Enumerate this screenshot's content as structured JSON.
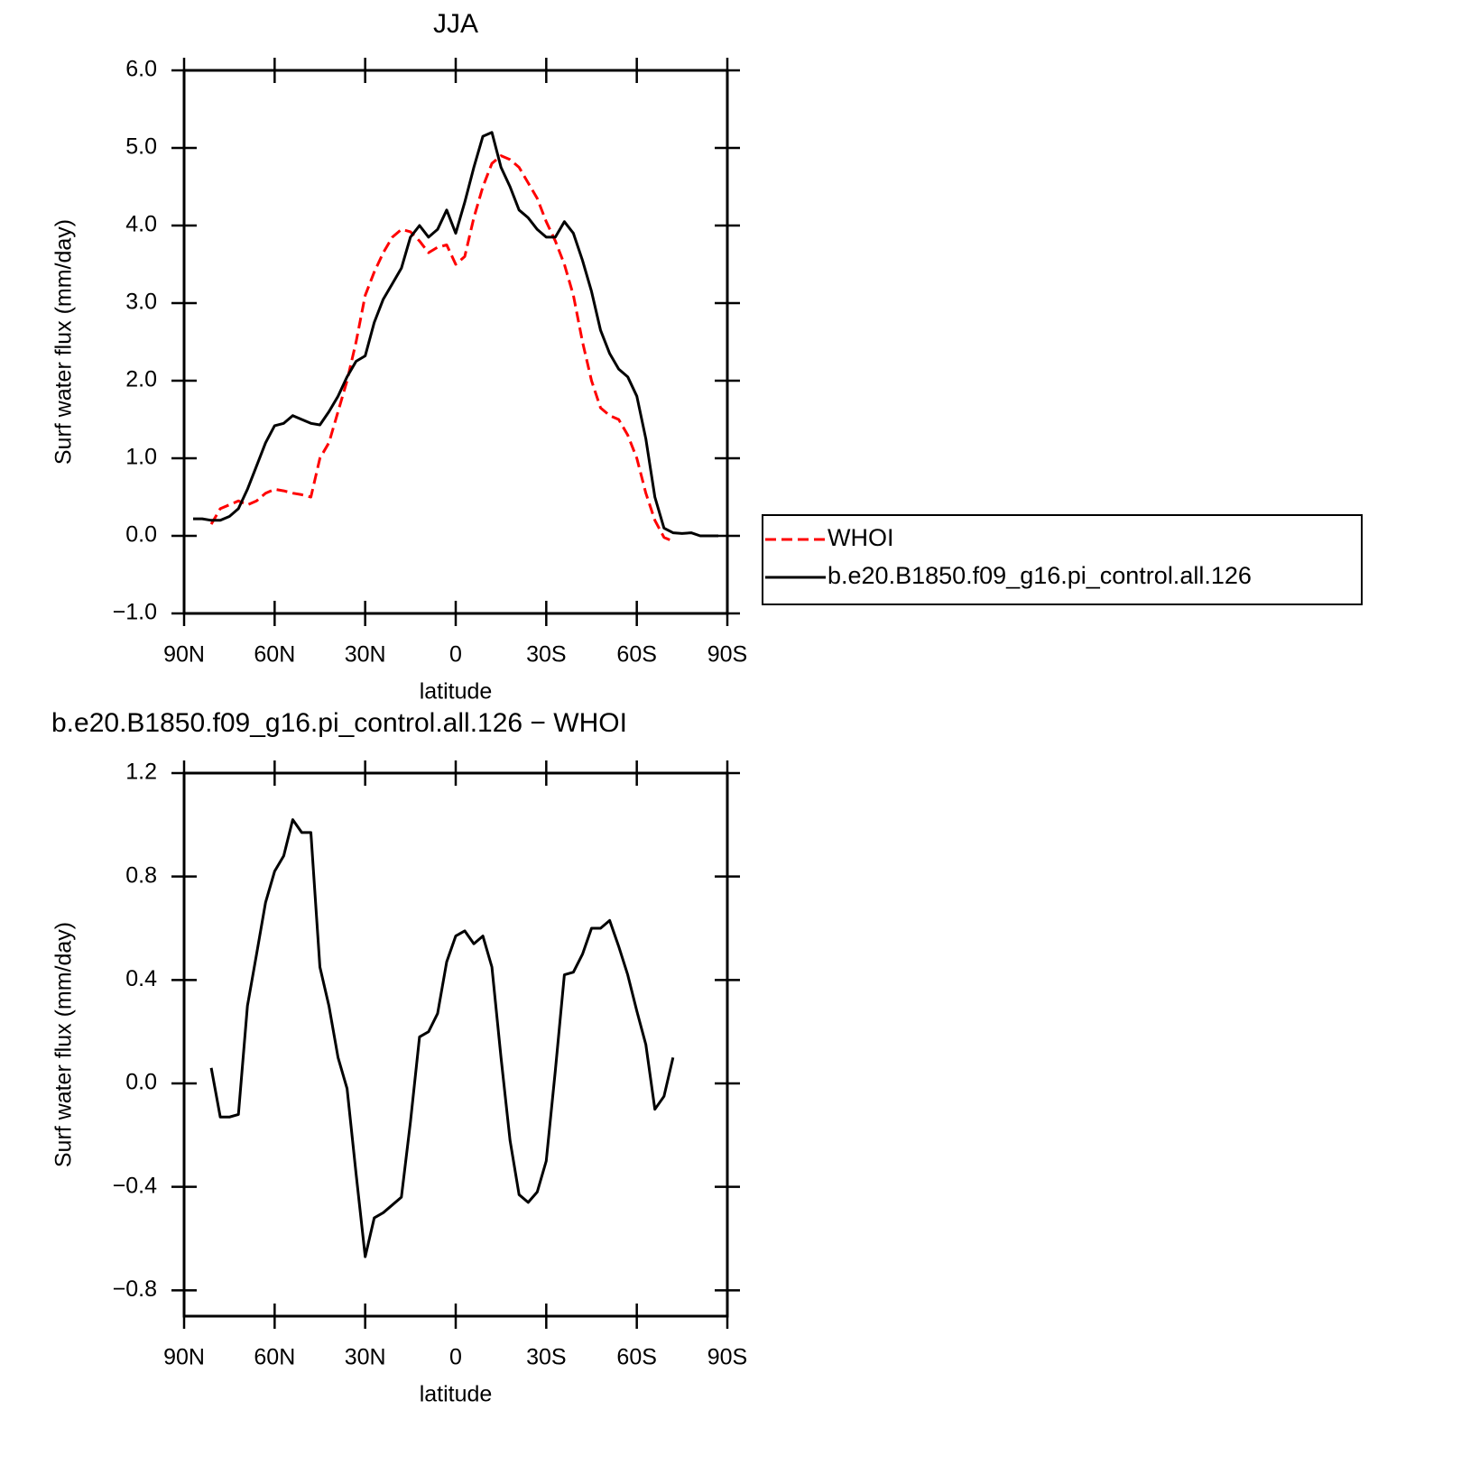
{
  "chart_data": [
    {
      "type": "line",
      "title": "JJA",
      "xlabel": "latitude",
      "ylabel": "Surf water flux (mm/day)",
      "x": [
        87,
        84,
        81,
        78,
        75,
        72,
        69,
        66,
        63,
        60,
        57,
        54,
        51,
        48,
        45,
        42,
        39,
        36,
        33,
        30,
        27,
        24,
        21,
        18,
        15,
        12,
        9,
        6,
        3,
        0,
        -3,
        -6,
        -9,
        -12,
        -15,
        -18,
        -21,
        -24,
        -27,
        -30,
        -33,
        -36,
        -39,
        -42,
        -45,
        -48,
        -51,
        -54,
        -57,
        -60,
        -63,
        -66,
        -69,
        -72,
        -75,
        -78,
        -81,
        -84,
        -87
      ],
      "xlim": [
        90,
        -90
      ],
      "xticks": [
        {
          "value": 90,
          "label": "90N"
        },
        {
          "value": 60,
          "label": "60N"
        },
        {
          "value": 30,
          "label": "30N"
        },
        0,
        {
          "value": -30,
          "label": "30S"
        },
        {
          "value": -60,
          "label": "60S"
        },
        {
          "value": -90,
          "label": "90S"
        }
      ],
      "ylim": [
        -1,
        6
      ],
      "yticks": [
        {
          "value": -1,
          "label": "−1.0"
        },
        {
          "value": 0,
          "label": "0.0"
        },
        {
          "value": 1,
          "label": "1.0"
        },
        {
          "value": 2,
          "label": "2.0"
        },
        {
          "value": 3,
          "label": "3.0"
        },
        {
          "value": 4,
          "label": "4.0"
        },
        {
          "value": 5,
          "label": "5.0"
        },
        {
          "value": 6,
          "label": "6.0"
        }
      ],
      "legend": "right",
      "series": [
        {
          "name": "WHOI",
          "color": "#ff0000",
          "style": "dashed",
          "values": [
            null,
            null,
            0.15,
            0.35,
            0.4,
            0.45,
            0.4,
            0.45,
            0.55,
            0.6,
            0.58,
            0.55,
            0.53,
            0.5,
            1.0,
            1.2,
            1.6,
            2.0,
            2.5,
            3.1,
            3.4,
            3.65,
            3.85,
            3.95,
            3.92,
            3.8,
            3.65,
            3.72,
            3.75,
            3.5,
            3.6,
            4.1,
            4.5,
            4.8,
            4.9,
            4.85,
            4.75,
            4.55,
            4.35,
            4.05,
            3.8,
            3.5,
            3.1,
            2.5,
            2.0,
            1.65,
            1.55,
            1.5,
            1.3,
            1.0,
            0.55,
            0.2,
            -0.02,
            -0.07,
            null,
            null,
            null,
            null,
            null
          ]
        },
        {
          "name": "b.e20.B1850.f09_g16.pi_control.all.126",
          "color": "#000000",
          "style": "solid",
          "values": [
            0.22,
            0.22,
            0.2,
            0.2,
            0.25,
            0.35,
            0.6,
            0.9,
            1.2,
            1.42,
            1.45,
            1.55,
            1.5,
            1.45,
            1.43,
            1.6,
            1.8,
            2.05,
            2.25,
            2.32,
            2.75,
            3.05,
            3.25,
            3.45,
            3.85,
            4.0,
            3.85,
            3.95,
            4.2,
            3.9,
            4.3,
            4.75,
            5.15,
            5.2,
            4.75,
            4.5,
            4.2,
            4.1,
            3.95,
            3.85,
            3.85,
            4.05,
            3.9,
            3.55,
            3.15,
            2.65,
            2.35,
            2.15,
            2.05,
            1.8,
            1.25,
            0.5,
            0.1,
            0.04,
            0.03,
            0.04,
            0.0,
            0.0,
            0.0
          ]
        }
      ]
    },
    {
      "type": "line",
      "title": "b.e20.B1850.f09_g16.pi_control.all.126 − WHOI",
      "xlabel": "latitude",
      "ylabel": "Surf water flux (mm/day)",
      "x": [
        81,
        78,
        75,
        72,
        69,
        66,
        63,
        60,
        57,
        54,
        51,
        48,
        45,
        42,
        39,
        36,
        33,
        30,
        27,
        24,
        21,
        18,
        15,
        12,
        9,
        6,
        3,
        0,
        -3,
        -6,
        -9,
        -12,
        -15,
        -18,
        -21,
        -24,
        -27,
        -30,
        -33,
        -36,
        -39,
        -42,
        -45,
        -48,
        -51,
        -54,
        -57,
        -60,
        -63,
        -66,
        -69,
        -72
      ],
      "xlim": [
        90,
        -90
      ],
      "xticks": [
        {
          "value": 90,
          "label": "90N"
        },
        {
          "value": 60,
          "label": "60N"
        },
        {
          "value": 30,
          "label": "30N"
        },
        0,
        {
          "value": -30,
          "label": "30S"
        },
        {
          "value": -60,
          "label": "60S"
        },
        {
          "value": -90,
          "label": "90S"
        }
      ],
      "ylim": [
        -0.9,
        1.2
      ],
      "yticks": [
        {
          "value": -0.8,
          "label": "−0.8"
        },
        {
          "value": -0.4,
          "label": "−0.4"
        },
        {
          "value": 0,
          "label": "0.0"
        },
        0.4,
        0.8,
        1.2
      ],
      "series": [
        {
          "color": "#000000",
          "style": "solid",
          "values": [
            0.06,
            -0.13,
            -0.13,
            -0.12,
            0.3,
            0.5,
            0.7,
            0.82,
            0.88,
            1.02,
            0.97,
            0.97,
            0.45,
            0.3,
            0.1,
            -0.02,
            -0.35,
            -0.67,
            -0.52,
            -0.5,
            -0.47,
            -0.44,
            -0.15,
            0.18,
            0.2,
            0.27,
            0.47,
            0.57,
            0.59,
            0.54,
            0.57,
            0.45,
            0.1,
            -0.22,
            -0.43,
            -0.46,
            -0.42,
            -0.3,
            0.05,
            0.42,
            0.43,
            0.5,
            0.6,
            0.6,
            0.63,
            0.53,
            0.42,
            0.28,
            0.15,
            -0.1,
            -0.05,
            0.1
          ]
        }
      ]
    }
  ]
}
